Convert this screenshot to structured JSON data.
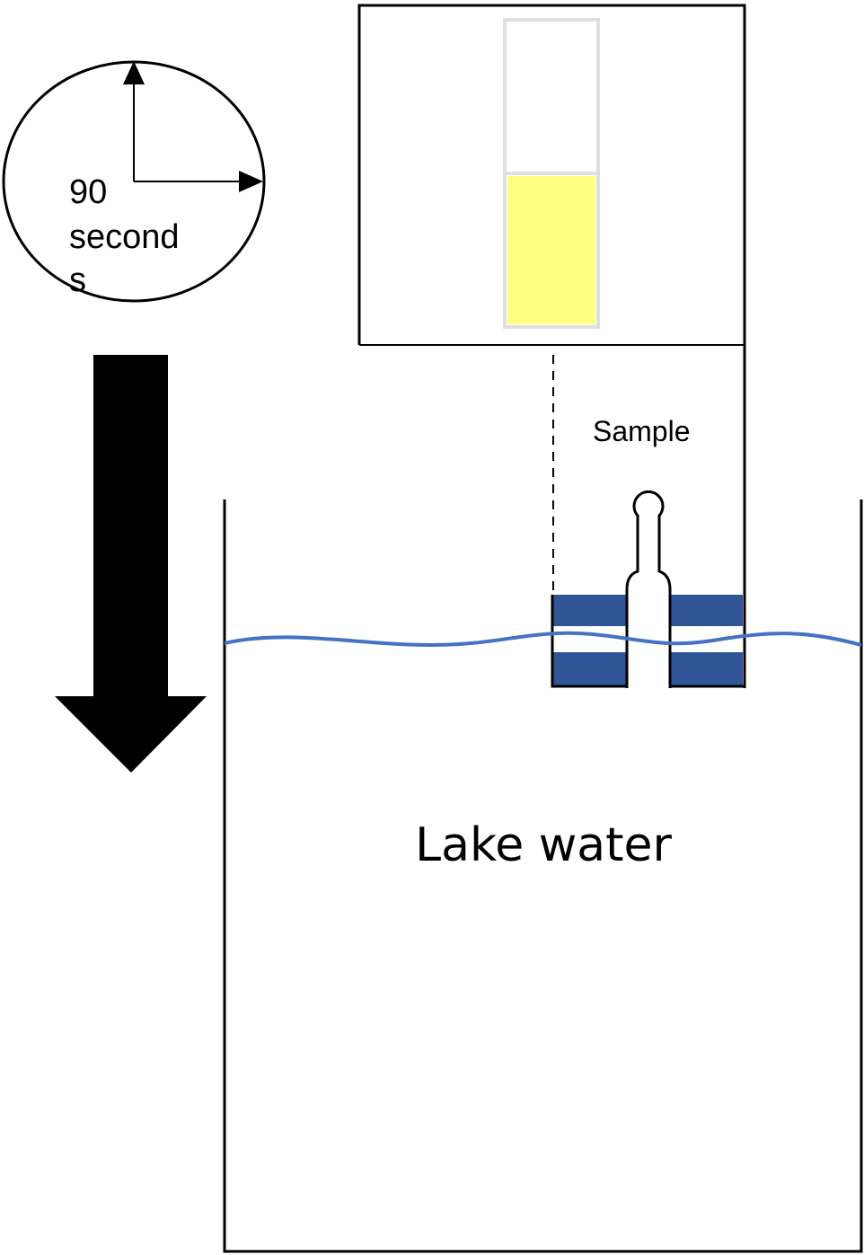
{
  "timer": {
    "label_line1": "90",
    "label_line2": "second",
    "label_line3": "s"
  },
  "sample": {
    "label": "Sample",
    "fill_level_fraction": 0.5
  },
  "lake": {
    "label": "Lake water"
  },
  "colors": {
    "outline": "#000000",
    "arrow": "#000000",
    "test_tube_fill": "#ffff80",
    "test_tube_border": "#e0e0e0",
    "probe_bands": "#2f5597",
    "water_line": "#4472c4"
  }
}
